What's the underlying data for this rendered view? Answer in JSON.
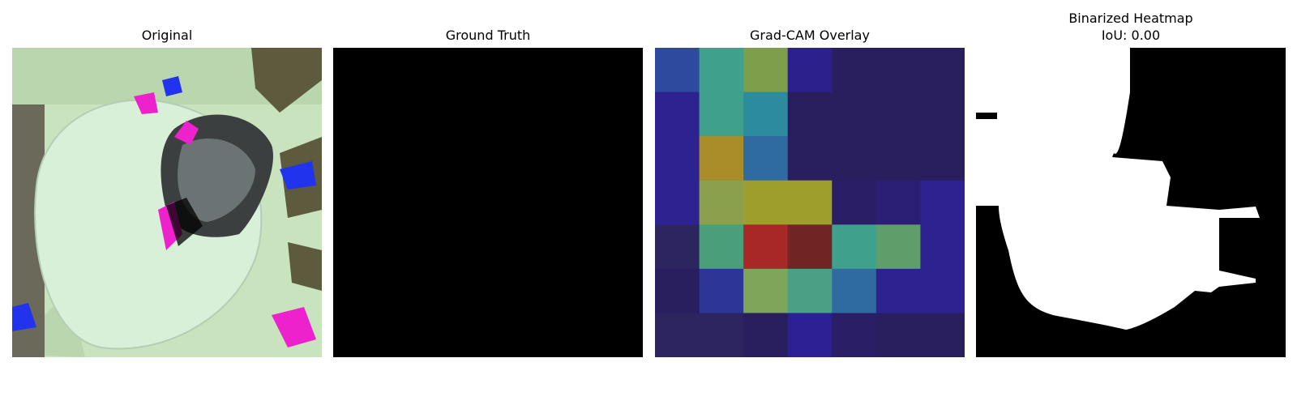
{
  "panels": [
    {
      "title": "Original",
      "image": "leaf-photo"
    },
    {
      "title": "Ground Truth",
      "image": "black-mask"
    },
    {
      "title": "Grad-CAM Overlay",
      "image": "gradcam-heatmap"
    },
    {
      "title": "Binarized Heatmap",
      "subtitle": "IoU: 0.00",
      "image": "binary-mask"
    }
  ],
  "gradcam": {
    "grid_rows": 7,
    "grid_cols": 7,
    "cell_colors": [
      [
        "#2d4a9e",
        "#3fa08c",
        "#7f9e4c",
        "#2c208c",
        "#2a1f5e",
        "#2a1f5e",
        "#2a1f5e"
      ],
      [
        "#2d2290",
        "#3fa08c",
        "#2a8c9e",
        "#2a1f5e",
        "#2a1f5e",
        "#2a1f5e",
        "#2a1f5e"
      ],
      [
        "#2d2290",
        "#a88d28",
        "#2f6aa0",
        "#2a1f5e",
        "#2a1f5e",
        "#2a1f5e",
        "#2a1f5e"
      ],
      [
        "#2d2290",
        "#8aa04c",
        "#9e9e2c",
        "#9e9e2c",
        "#2a1f66",
        "#2a1f74",
        "#2d2290"
      ],
      [
        "#2d2560",
        "#4a9e7a",
        "#a82828",
        "#702424",
        "#3fa08c",
        "#5f9e6a",
        "#2d2290"
      ],
      [
        "#2a1f5e",
        "#2d3596",
        "#7fa55a",
        "#4aa085",
        "#2f6aa0",
        "#2d2290",
        "#2d2290"
      ],
      [
        "#2d2560",
        "#2d2560",
        "#2a1f5e",
        "#2d1f94",
        "#2a1f66",
        "#2a1f5e",
        "#2a1f5e"
      ]
    ]
  }
}
